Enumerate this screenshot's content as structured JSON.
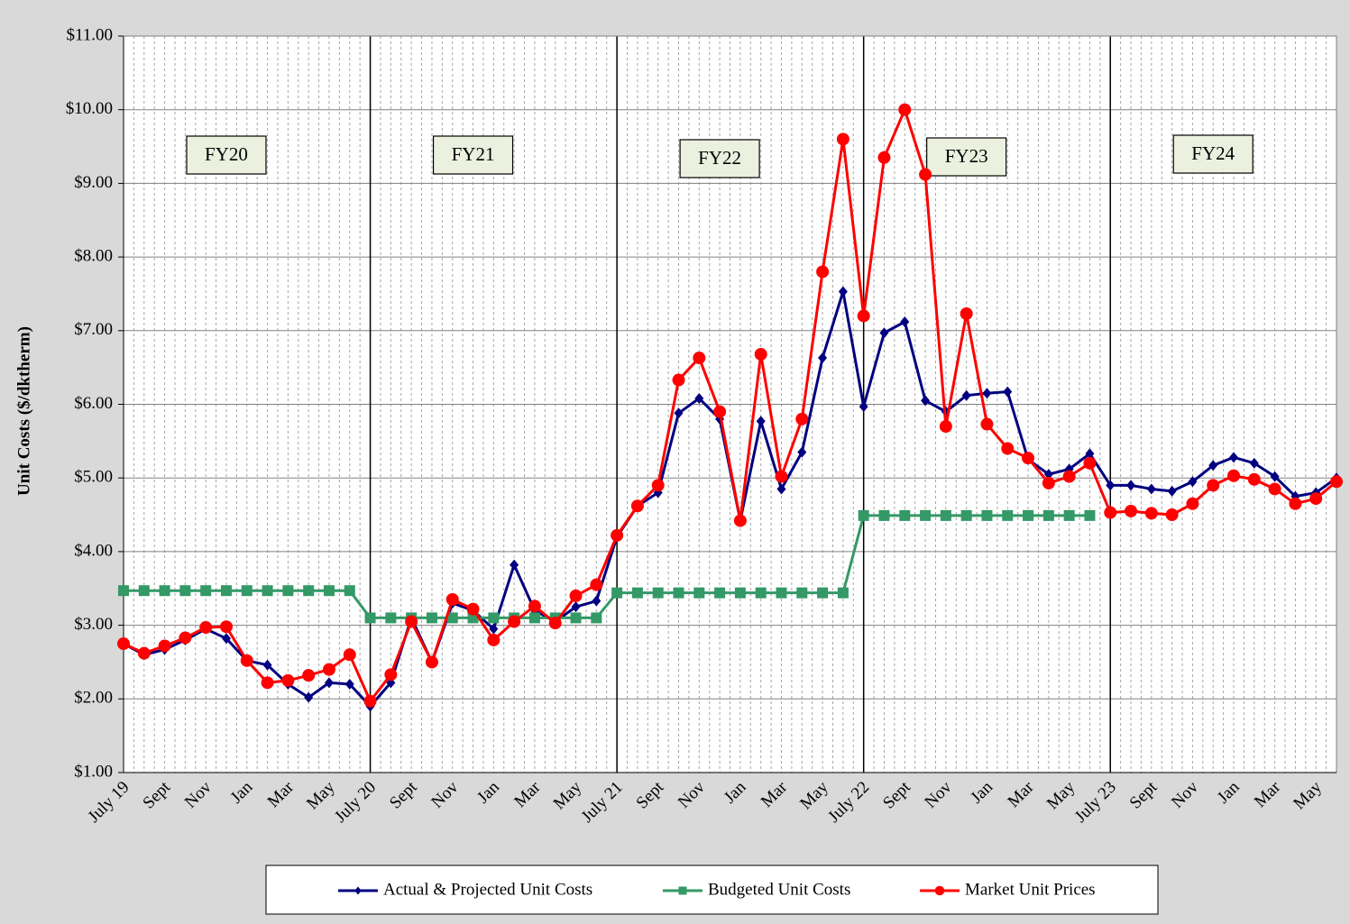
{
  "chart_data": {
    "type": "line",
    "y_axis_label": "Unit Costs ($/dktherm)",
    "annotations": [
      "FY20",
      "FY21",
      "FY22",
      "FY23",
      "FY24"
    ],
    "categories": [
      "July 19",
      null,
      "Sept",
      null,
      "Nov",
      null,
      "Jan",
      null,
      "Mar",
      null,
      "May",
      null,
      "July 20",
      null,
      "Sept",
      null,
      "Nov",
      null,
      "Jan",
      null,
      "Mar",
      null,
      "May",
      null,
      "July 21",
      null,
      "Sept",
      null,
      "Nov",
      null,
      "Jan",
      null,
      "Mar",
      null,
      "May",
      null,
      "July 22",
      null,
      "Sept",
      null,
      "Nov",
      null,
      "Jan",
      null,
      "Mar",
      null,
      "May",
      null,
      "July 23",
      null,
      "Sept",
      null,
      "Nov",
      null,
      "Jan",
      null,
      "Mar",
      null,
      "May",
      null
    ],
    "ylim": [
      1,
      11
    ],
    "yticks": [
      {
        "value": 1,
        "label": "$1.00"
      },
      {
        "value": 2,
        "label": "$2.00"
      },
      {
        "value": 3,
        "label": "$3.00"
      },
      {
        "value": 4,
        "label": "$4.00"
      },
      {
        "value": 5,
        "label": "$5.00"
      },
      {
        "value": 6,
        "label": "$6.00"
      },
      {
        "value": 7,
        "label": "$7.00"
      },
      {
        "value": 8,
        "label": "$8.00"
      },
      {
        "value": 9,
        "label": "$9.00"
      },
      {
        "value": 10,
        "label": "$10.00"
      },
      {
        "value": 11,
        "label": "$11.00"
      }
    ],
    "grid": true,
    "legend": "bottom",
    "series": [
      {
        "name": "Actual & Projected Unit Costs",
        "color": "#000080",
        "marker": "diamond",
        "values": [
          2.75,
          2.6,
          2.67,
          2.8,
          2.95,
          2.82,
          2.52,
          2.46,
          2.2,
          2.02,
          2.22,
          2.2,
          1.9,
          2.22,
          3.1,
          2.5,
          3.3,
          3.2,
          2.95,
          3.82,
          3.2,
          3.05,
          3.25,
          3.33,
          4.2,
          4.62,
          4.8,
          5.88,
          6.08,
          5.8,
          4.42,
          5.77,
          4.85,
          5.35,
          6.63,
          7.53,
          5.97,
          6.97,
          7.12,
          6.05,
          5.9,
          6.12,
          6.15,
          6.17,
          5.25,
          5.05,
          5.12,
          5.33,
          4.9,
          4.9,
          4.85,
          4.82,
          4.95,
          5.17,
          5.28,
          5.2,
          5.02,
          4.75,
          4.8,
          5.0
        ]
      },
      {
        "name": "Budgeted Unit Costs",
        "color": "#339966",
        "marker": "square",
        "values": [
          3.47,
          3.47,
          3.47,
          3.47,
          3.47,
          3.47,
          3.47,
          3.47,
          3.47,
          3.47,
          3.47,
          3.47,
          3.1,
          3.1,
          3.1,
          3.1,
          3.1,
          3.1,
          3.1,
          3.1,
          3.1,
          3.1,
          3.1,
          3.1,
          3.44,
          3.44,
          3.44,
          3.44,
          3.44,
          3.44,
          3.44,
          3.44,
          3.44,
          3.44,
          3.44,
          3.44,
          4.49,
          4.49,
          4.49,
          4.49,
          4.49,
          4.49,
          4.49,
          4.49,
          4.49,
          4.49,
          4.49,
          4.49,
          null,
          null,
          null,
          null,
          null,
          null,
          null,
          null,
          null,
          null,
          null,
          null
        ]
      },
      {
        "name": "Market Unit Prices",
        "color": "#ff0000",
        "marker": "circle",
        "values": [
          2.75,
          2.62,
          2.72,
          2.83,
          2.97,
          2.98,
          2.52,
          2.22,
          2.25,
          2.32,
          2.4,
          2.6,
          1.97,
          2.33,
          3.05,
          2.5,
          3.35,
          3.22,
          2.8,
          3.05,
          3.26,
          3.03,
          3.4,
          3.55,
          4.22,
          4.62,
          4.9,
          6.33,
          6.63,
          5.9,
          4.42,
          6.68,
          5.02,
          5.8,
          7.8,
          9.6,
          7.2,
          9.35,
          10.0,
          9.12,
          5.7,
          7.23,
          5.73,
          5.4,
          5.27,
          4.93,
          5.02,
          5.2,
          4.53,
          4.55,
          4.52,
          4.5,
          4.65,
          4.9,
          5.03,
          4.98,
          4.85,
          4.65,
          4.72,
          4.95
        ]
      }
    ]
  }
}
